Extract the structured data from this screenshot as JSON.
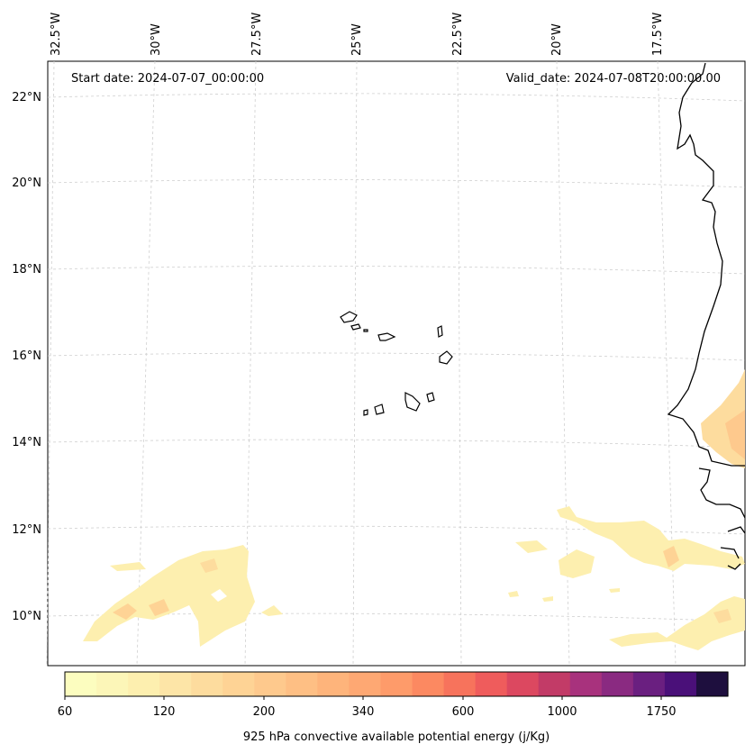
{
  "map": {
    "start_date_text": "Start date: 2024-07-07_00:00:00",
    "valid_date_text": "Valid_date: 2024-07-08T20:00:00.00",
    "lon_labels": [
      "32.5°W",
      "30°W",
      "27.5°W",
      "25°W",
      "22.5°W",
      "20°W",
      "17.5°W"
    ],
    "lat_labels": [
      "22°N",
      "20°N",
      "18°N",
      "16°N",
      "14°N",
      "12°N",
      "10°N"
    ],
    "gridlines": true,
    "colorbar": {
      "label": "925 hPa convective available potential energy (j/Kg)",
      "tick_labels": [
        "60",
        "120",
        "200",
        "340",
        "600",
        "1000",
        "1750"
      ],
      "colors": [
        "#fcfdbf",
        "#fcf6b8",
        "#fdefaf",
        "#fde5a7",
        "#fddc9e",
        "#fed395",
        "#fec98d",
        "#febf84",
        "#feb47b",
        "#fea873",
        "#fe9b6a",
        "#fc8961",
        "#f7735c",
        "#ef5c5c",
        "#dc4860",
        "#c23b67",
        "#a8327d",
        "#8a2a81",
        "#6a1f80",
        "#4a1079",
        "#1e0f3e"
      ],
      "placement": "bottom"
    }
  }
}
